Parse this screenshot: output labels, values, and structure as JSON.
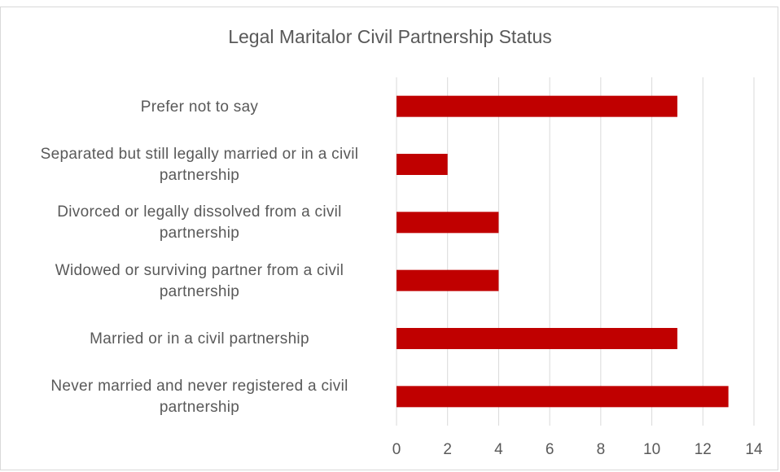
{
  "chart_data": {
    "type": "barh",
    "title": "Legal Maritalor Civil Partnership Status",
    "categories": [
      "Prefer not to say",
      "Separated but still legally married or in a civil partnership",
      "Divorced or legally dissolved from a civil partnership",
      "Widowed or surviving partner from a civil partnership",
      "Married or in a civil partnership",
      "Never married and never registered a civil partnership"
    ],
    "values": [
      11,
      2,
      4,
      4,
      11,
      13
    ],
    "color": "#c00000",
    "xlim": [
      0,
      14
    ],
    "xticks": [
      0,
      2,
      4,
      6,
      8,
      10,
      12,
      14
    ],
    "grid": true
  }
}
